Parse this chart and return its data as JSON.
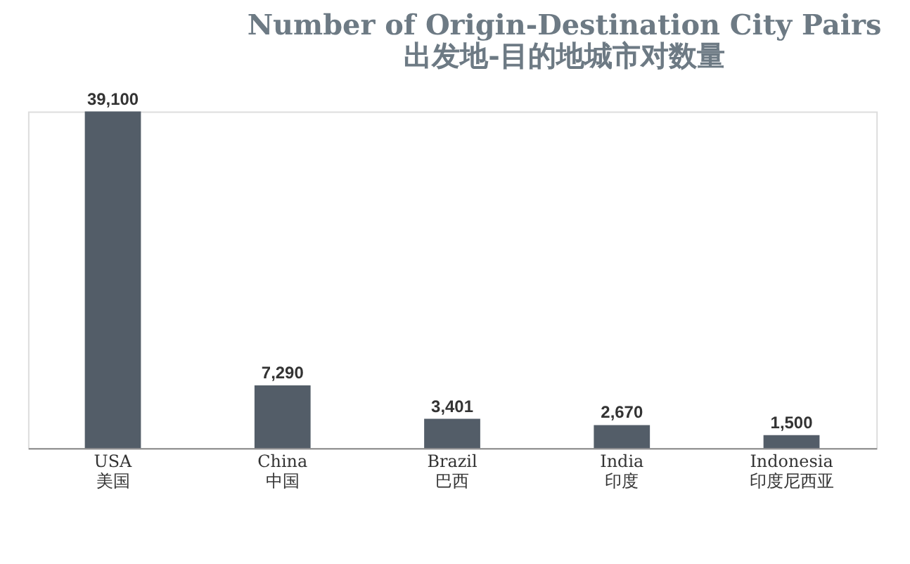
{
  "chart_data": {
    "type": "bar",
    "title": [
      "Number of Origin-Destination City Pairs",
      "出发地-目的地城市对数量"
    ],
    "categories": [
      "USA\n美国",
      "China\n中国",
      "Brazil\n巴西",
      "India\n印度",
      "Indonesia\n印度尼西亚"
    ],
    "values": [
      39100,
      7290,
      3401,
      2670,
      1500
    ],
    "value_labels": [
      "39,100",
      "7,290",
      "3,401",
      "2,670",
      "1,500"
    ],
    "color": "#535d68"
  }
}
